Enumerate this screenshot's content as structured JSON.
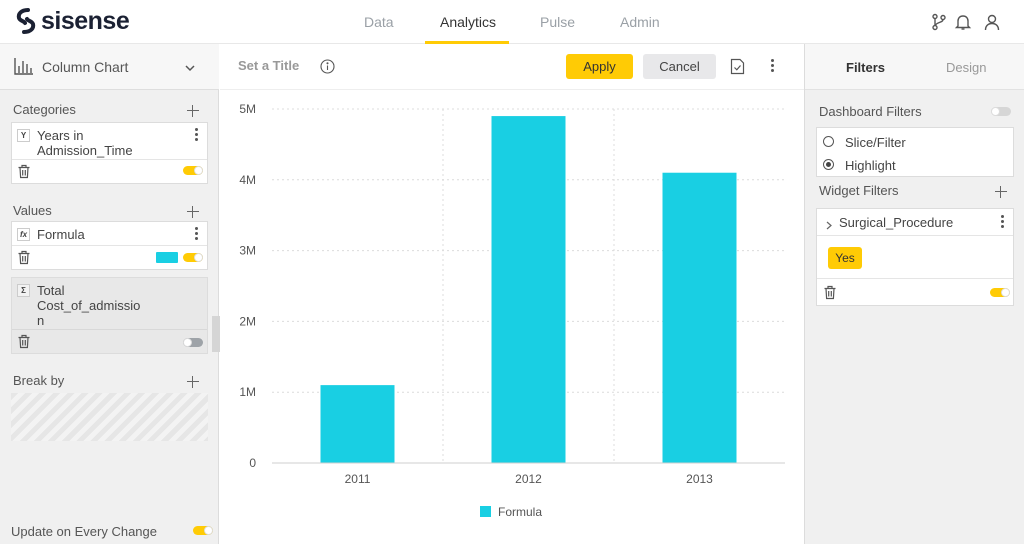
{
  "brand": {
    "name": "sisense"
  },
  "nav": {
    "items": [
      "Data",
      "Analytics",
      "Pulse",
      "Admin"
    ],
    "active": "Analytics"
  },
  "left_panel": {
    "chart_type": "Column Chart",
    "categories": {
      "label": "Categories",
      "item": {
        "badge": "Y",
        "line1": "Years in",
        "line2": "Admission_Time"
      }
    },
    "values": {
      "label": "Values",
      "items": [
        {
          "badge": "fx",
          "line1": "Formula",
          "color": "#19cfe3",
          "enabled": true
        },
        {
          "badge": "Σ",
          "line1": "Total",
          "line2": "Cost_of_admissio",
          "line3": "n",
          "enabled": false
        }
      ]
    },
    "break_by": {
      "label": "Break by"
    },
    "update_label": "Update on Every Change"
  },
  "toolbar": {
    "title_placeholder": "Set a Title",
    "apply_label": "Apply",
    "cancel_label": "Cancel"
  },
  "chart_data": {
    "type": "bar",
    "categories": [
      "2011",
      "2012",
      "2013"
    ],
    "series": [
      {
        "name": "Formula",
        "values": [
          1100000,
          4900000,
          4100000
        ],
        "color": "#19cfe3"
      }
    ],
    "ylim": [
      0,
      5000000
    ],
    "yticks": [
      0,
      1000000,
      2000000,
      3000000,
      4000000,
      5000000
    ],
    "ytick_labels": [
      "0",
      "1M",
      "2M",
      "3M",
      "4M",
      "5M"
    ],
    "grid": true,
    "legend": "bottom-center"
  },
  "right_panel": {
    "tabs": [
      "Filters",
      "Design"
    ],
    "active_tab": "Filters",
    "dashboard_filters_label": "Dashboard Filters",
    "radio_options": [
      {
        "label": "Slice/Filter",
        "checked": false
      },
      {
        "label": "Highlight",
        "checked": true
      }
    ],
    "widget_filters_label": "Widget Filters",
    "widget_filter": {
      "name": "Surgical_Procedure",
      "value": "Yes"
    }
  },
  "colors": {
    "accent": "#ffcb05",
    "series": "#19cfe3",
    "brand_dark": "#1b2133"
  }
}
